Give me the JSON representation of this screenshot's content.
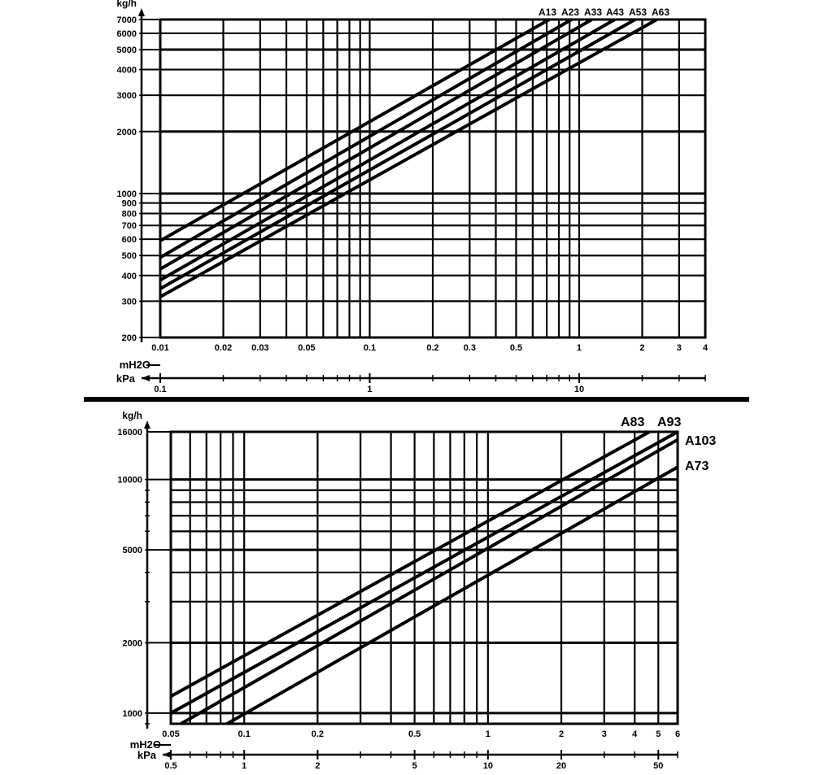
{
  "chart_data": [
    {
      "type": "line",
      "scale": "log-log",
      "grid": true,
      "ylabel": "kg/h",
      "xlabel": "mH2O",
      "xlabel_secondary": "kPa",
      "ylim": [
        200,
        7000
      ],
      "xlim_mH2O": [
        0.01,
        4
      ],
      "xlim_kPa": [
        0.1,
        40
      ],
      "y_ticks": [
        "7000",
        "6000",
        "5000",
        "4000",
        "3000",
        "2000",
        "1000",
        "900",
        "800",
        "700",
        "600",
        "500",
        "400",
        "300",
        "200"
      ],
      "x_ticks_mH2O": [
        "0.01",
        "0.02",
        "0.03",
        "0.05",
        "0.1",
        "0.2",
        "0.3",
        "0.5",
        "1",
        "2",
        "3",
        "4"
      ],
      "x_ticks_kPa": [
        "0.1",
        "1",
        "10"
      ],
      "series": [
        {
          "name": "A13",
          "x": [
            0.01,
            0.72
          ],
          "y": [
            590,
            7000
          ]
        },
        {
          "name": "A23",
          "x": [
            0.01,
            0.92
          ],
          "y": [
            490,
            7000
          ]
        },
        {
          "name": "A33",
          "x": [
            0.01,
            1.15
          ],
          "y": [
            430,
            7000
          ]
        },
        {
          "name": "A43",
          "x": [
            0.01,
            1.48
          ],
          "y": [
            380,
            7000
          ]
        },
        {
          "name": "A53",
          "x": [
            0.01,
            1.85
          ],
          "y": [
            345,
            7000
          ]
        },
        {
          "name": "A63",
          "x": [
            0.01,
            2.35
          ],
          "y": [
            315,
            7000
          ]
        }
      ]
    },
    {
      "type": "line",
      "scale": "log-log",
      "grid": true,
      "ylabel": "kg/h",
      "xlabel": "mH2O",
      "xlabel_secondary": "kPa",
      "ylim": [
        900,
        16000
      ],
      "xlim_mH2O": [
        0.05,
        6
      ],
      "xlim_kPa": [
        0.5,
        60
      ],
      "y_ticks": [
        "16000",
        "10000",
        "5000",
        "2000",
        "1000"
      ],
      "x_ticks_mH2O": [
        "0.05",
        "0.1",
        "0.2",
        "0.5",
        "1",
        "2",
        "3",
        "4",
        "5",
        "6"
      ],
      "x_ticks_kPa": [
        "0.5",
        "1",
        "2",
        "5",
        "10",
        "20",
        "50"
      ],
      "series": [
        {
          "name": "A83",
          "x": [
            0.05,
            4.6
          ],
          "y": [
            1180,
            16000
          ]
        },
        {
          "name": "A93",
          "x": [
            0.05,
            6.0
          ],
          "y": [
            1000,
            16000
          ]
        },
        {
          "name": "A103",
          "x": [
            0.055,
            6.0
          ],
          "y": [
            900,
            14800
          ]
        },
        {
          "name": "A73",
          "x": [
            0.085,
            6.0
          ],
          "y": [
            900,
            11300
          ]
        }
      ]
    }
  ]
}
